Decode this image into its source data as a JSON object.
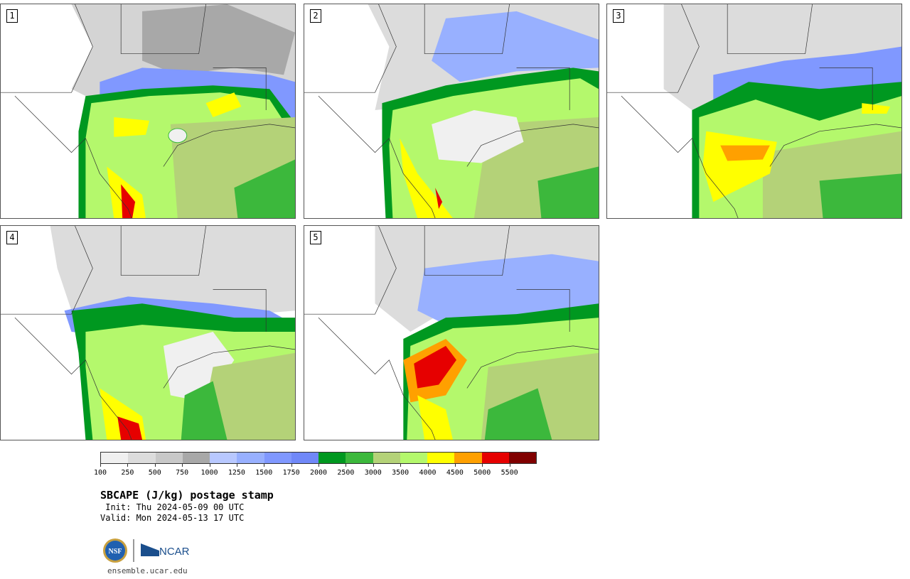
{
  "panels": [
    {
      "number": "1"
    },
    {
      "number": "2"
    },
    {
      "number": "3"
    },
    {
      "number": "4"
    },
    {
      "number": "5"
    }
  ],
  "colorbar": {
    "colors": [
      "#f0f0f0",
      "#dcdcdc",
      "#c8c8c8",
      "#a8a8a8",
      "#b8c8ff",
      "#98b0ff",
      "#8098ff",
      "#7088f8",
      "#009820",
      "#3cb83c",
      "#b4d278",
      "#b4f86c",
      "#ffff00",
      "#ffa000",
      "#e60000",
      "#800000"
    ],
    "labels": [
      "100",
      "250",
      "500",
      "750",
      "1000",
      "1250",
      "1500",
      "1750",
      "2000",
      "2500",
      "3000",
      "3500",
      "4000",
      "4500",
      "5000",
      "5500"
    ]
  },
  "title": "SBCAPE (J/kg) postage stamp",
  "init_line": " Init: Thu 2024-05-09 00 UTC",
  "valid_line": "Valid: Mon 2024-05-13 17 UTC",
  "logos": {
    "nsf": "NSF",
    "ncar": "NCAR"
  },
  "website": "ensemble.ucar.edu"
}
